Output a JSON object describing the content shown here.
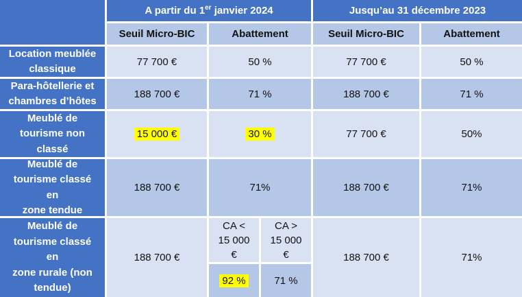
{
  "colors": {
    "header_blue": "#4472C4",
    "band_light": "#D9E2F3",
    "band_medium": "#B4C7E7",
    "highlight_yellow": "#FFFF00",
    "border_white": "#FFFFFF"
  },
  "header": {
    "period_2024": {
      "prefix": "A partir du 1",
      "superscript": "er",
      "suffix": " janvier 2024"
    },
    "period_2023": "Jusqu’au 31 décembre 2023",
    "columns": [
      "Seuil Micro-BIC",
      "Abattement",
      "Seuil Micro-BIC",
      "Abattement"
    ]
  },
  "rows": [
    {
      "label": "Location meublée\nclassique",
      "seuil_2024": "77 700 €",
      "abattement_2024": "50 %",
      "seuil_2023": "77 700 €",
      "abattement_2023": "50 %"
    },
    {
      "label": "Para-hôtellerie et\nchambres d’hôtes",
      "seuil_2024": "188 700 €",
      "abattement_2024": "71 %",
      "seuil_2023": "188 700 €",
      "abattement_2023": "71 %"
    },
    {
      "label": "Meublé de\ntourisme non\nclassé",
      "seuil_2024": "15 000 €",
      "abattement_2024": "30 %",
      "seuil_2023": "77 700 €",
      "abattement_2023": "50%",
      "highlighted_2024": true
    },
    {
      "label": "Meublé de\ntourisme classé\nen\nzone tendue",
      "seuil_2024": "188 700 €",
      "abattement_2024": "71%",
      "seuil_2023": "188 700 €",
      "abattement_2023": "71%"
    },
    {
      "label": "Meublé de\ntourisme classé\nen\nzone rurale (non\ntendue)",
      "seuil_2024": "188 700 €",
      "split": {
        "header_low": "CA <\n15 000\n€",
        "header_high": "CA >\n15 000\n€",
        "value_low": "92 %",
        "value_high": "71 %",
        "value_low_highlighted": true
      },
      "seuil_2023": "188 700 €",
      "abattement_2023": "71%"
    }
  ]
}
